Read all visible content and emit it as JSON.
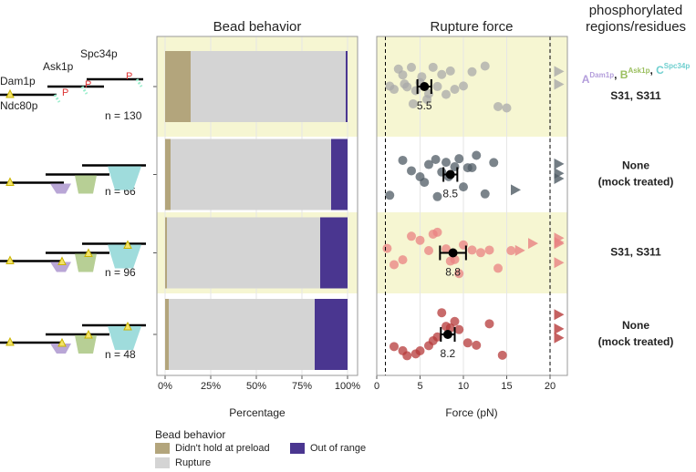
{
  "chart_data": [
    {
      "type": "stacked_bar_horizontal",
      "title": "Bead behavior",
      "xlabel": "Percentage",
      "categories": [
        "n = 130",
        "n = 66",
        "n = 96",
        "n = 48"
      ],
      "series": [
        {
          "name": "Didn't hold at preload",
          "color": "#b3a57c",
          "values": [
            14,
            3,
            1,
            2
          ]
        },
        {
          "name": "Rupture",
          "color": "#d4d4d4",
          "values": [
            85,
            88,
            84,
            80
          ]
        },
        {
          "name": "Out of range",
          "color": "#4a3690",
          "values": [
            1,
            9,
            15,
            18
          ]
        }
      ],
      "xlim": [
        -4.5,
        105.5
      ],
      "xticks": [
        {
          "value": 0,
          "label": "0%"
        },
        {
          "value": 25,
          "label": "25%"
        },
        {
          "value": 50,
          "label": "50%"
        },
        {
          "value": 75,
          "label": "75%"
        },
        {
          "value": 100,
          "label": "100%"
        }
      ],
      "grid": true,
      "legend_title": "Bead behavior",
      "legend": "bottom",
      "row_shading": [
        "#f6f6d2",
        "#ffffff",
        "#f6f6d2",
        "#ffffff"
      ]
    },
    {
      "type": "strip",
      "title": "Rupture force",
      "xlabel": "Force (pN)",
      "xlim": [
        0,
        22
      ],
      "xticks": [
        0,
        5,
        10,
        15,
        20
      ],
      "vlines": [
        1,
        20
      ],
      "grid": true,
      "row_shading": [
        "#f6f6d2",
        "#ffffff",
        "#f6f6d2",
        "#ffffff"
      ],
      "series": [
        {
          "color": "#a9a9a9",
          "points": [
            1.5,
            2,
            2.5,
            3,
            3.2,
            3.5,
            4,
            4.2,
            4.5,
            5,
            5.2,
            5.8,
            6,
            6.5,
            7,
            7.5,
            8,
            8.5,
            9,
            10,
            11,
            12.5,
            14,
            15
          ],
          "triangles": [
            21,
            21
          ],
          "mean": 5.5,
          "error": 0.8
        },
        {
          "color": "#4f5b64",
          "points": [
            1.5,
            3,
            4,
            5,
            5.5,
            6,
            6.8,
            7,
            7.5,
            8,
            8.3,
            9,
            9.5,
            10,
            10.5,
            11,
            11.5,
            12.5,
            13.5
          ],
          "triangles": [
            16,
            21,
            21,
            21
          ],
          "mean": 8.5,
          "error": 0.8
        },
        {
          "color": "#e98282",
          "points": [
            1.2,
            2,
            3,
            4,
            5,
            6,
            6.5,
            7,
            8,
            8.5,
            9,
            9.5,
            10,
            11,
            12,
            13,
            14,
            15.5
          ],
          "triangles": [
            16.5,
            18,
            21,
            21,
            21,
            21
          ],
          "mean": 8.8,
          "error": 1.5
        },
        {
          "color": "#b63a3a",
          "points": [
            2,
            3,
            3.5,
            4.5,
            5,
            6,
            6.5,
            7,
            7.5,
            8,
            8.5,
            9,
            9.5,
            10.5,
            11.5,
            13,
            14.5
          ],
          "triangles": [
            21,
            21,
            21
          ],
          "mean": 8.2,
          "error": 0.8
        }
      ]
    }
  ],
  "schematic": {
    "dam1": "Dam1p",
    "ask1": "Ask1p",
    "spc34": "Spc34p",
    "ndc80": "Ndc80p",
    "phospho": "P"
  },
  "annotations": {
    "title": [
      "phosphorylated",
      "regions/residues"
    ],
    "key": [
      {
        "letter": "A",
        "protein": "Dam1p",
        "color": "#b39ddb"
      },
      {
        "letter": "B",
        "protein": "Ask1p",
        "color": "#9bbf5f"
      },
      {
        "letter": "C",
        "protein": "Spc34p",
        "color": "#6fcfcf"
      }
    ],
    "separator": ", ",
    "rows": [
      [
        "S31, S311"
      ],
      [
        "None",
        "(mock treated)"
      ],
      [
        "S31, S311"
      ],
      [
        "None",
        "(mock treated)"
      ]
    ]
  }
}
